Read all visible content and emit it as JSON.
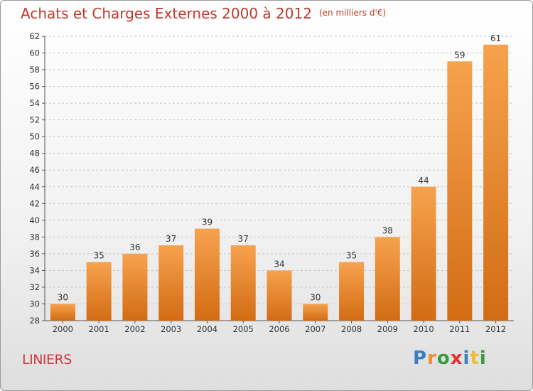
{
  "header": {
    "title": "Achats et Charges Externes 2000 à 2012",
    "unit": "(en milliers d'€)"
  },
  "footer": {
    "place": "LINIERS",
    "logo_letters": [
      {
        "ch": "P",
        "color": "#3a7fc1"
      },
      {
        "ch": "r",
        "color": "#e8902f"
      },
      {
        "ch": "o",
        "color": "#3a9a3a"
      },
      {
        "ch": "x",
        "color": "#e83030"
      },
      {
        "ch": "i",
        "color": "#3a7fc1"
      },
      {
        "ch": "t",
        "color": "#e8c030"
      },
      {
        "ch": "i",
        "color": "#3a9a3a"
      }
    ]
  },
  "colors": {
    "bar_light": "#f7a24e",
    "bar_dark": "#d26c14",
    "title": "#c0392b",
    "grid": "#c8c8c8"
  },
  "chart_data": {
    "type": "bar",
    "title": "Achats et Charges Externes 2000 à 2012",
    "subtitle": "(en milliers d'€)",
    "xlabel": "",
    "ylabel": "",
    "categories": [
      "2000",
      "2001",
      "2002",
      "2003",
      "2004",
      "2005",
      "2006",
      "2007",
      "2008",
      "2009",
      "2010",
      "2011",
      "2012"
    ],
    "values": [
      30,
      35,
      36,
      37,
      39,
      37,
      34,
      30,
      35,
      38,
      44,
      59,
      61
    ],
    "ylim": [
      28,
      62
    ],
    "yticks": [
      28,
      30,
      32,
      34,
      36,
      38,
      40,
      42,
      44,
      46,
      48,
      50,
      52,
      54,
      56,
      58,
      60,
      62
    ],
    "grid": true,
    "legend": "none"
  }
}
